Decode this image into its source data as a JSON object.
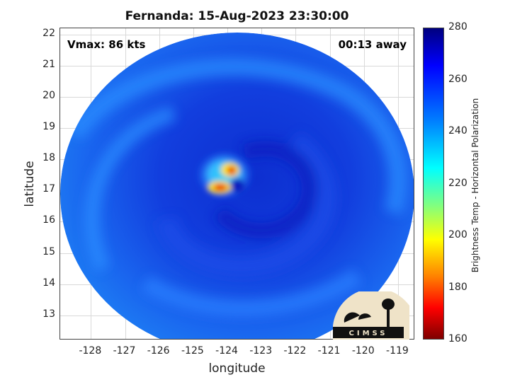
{
  "chart_data": {
    "type": "heatmap",
    "title": "Fernanda: 15-Aug-2023 23:30:00",
    "xlabel": "longitude",
    "ylabel": "latitude",
    "xlim": [
      -128.9,
      -118.5
    ],
    "ylim": [
      12.2,
      22.2
    ],
    "x_ticks": [
      -128,
      -127,
      -126,
      -125,
      -124,
      -123,
      -122,
      -121,
      -120,
      -119
    ],
    "y_ticks": [
      13,
      14,
      15,
      16,
      17,
      18,
      19,
      20,
      21,
      22
    ],
    "grid": true,
    "annotations": {
      "vmax": "Vmax: 86 kts",
      "time_offset": "00:13 away"
    },
    "colorbar": {
      "label": "Brightness Temp - Horizontal Polarization",
      "range": [
        160,
        280
      ],
      "ticks": [
        280,
        260,
        240,
        220,
        200,
        180,
        160
      ],
      "colormap": "jet"
    },
    "storm_center": {
      "lon": -124.0,
      "lat": 17.3
    },
    "swath_center": {
      "lon": -123.7,
      "lat": 16.8
    }
  },
  "logo": {
    "text": "CIMSS",
    "background": "#efe3c8",
    "foreground": "#111111"
  },
  "colors": {
    "deep_blue": "#0a1fbf",
    "mid_blue": "#1565ee",
    "cyan": "#24d2f6",
    "yellow": "#ffe600",
    "red": "#e80000"
  }
}
